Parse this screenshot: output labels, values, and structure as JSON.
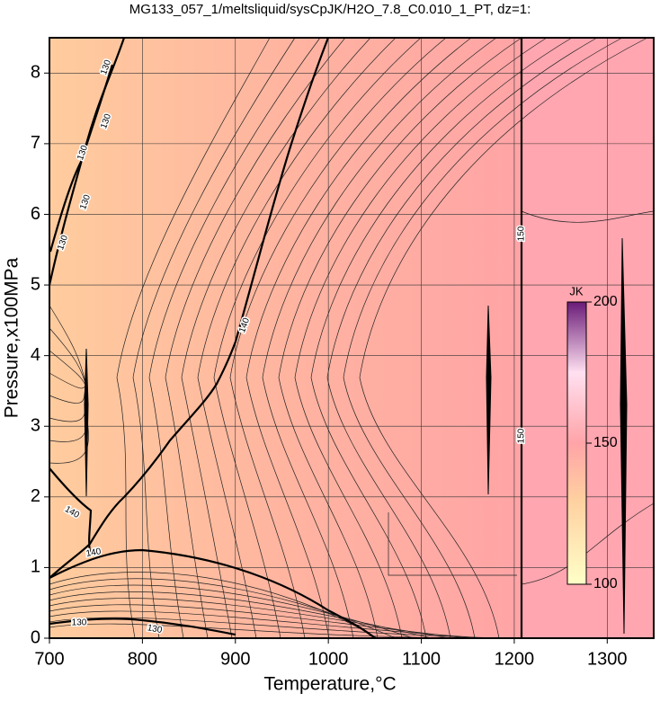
{
  "chart_data": {
    "type": "contour",
    "title": "MG133_057_1/meltsliquid/sysCpJK/H2O_7.8_C0.010_1_PT, dz=1:",
    "x_label": "Temperature,°C",
    "y_label": "Pressure,x100MPa",
    "xlim": [
      700,
      1350
    ],
    "xticks": [
      700,
      800,
      900,
      1000,
      1100,
      1200,
      1300
    ],
    "ylim": [
      0,
      8.5
    ],
    "yticks": [
      0,
      1,
      2,
      3,
      4,
      5,
      6,
      7,
      8
    ],
    "grid": true,
    "contour_labels": [
      130,
      130,
      130,
      130,
      130,
      140,
      140,
      140,
      150,
      150,
      130,
      130
    ],
    "colorbar": {
      "label": "JK",
      "lim": [
        100,
        200
      ],
      "ticks": [
        100,
        150,
        200
      ]
    }
  }
}
